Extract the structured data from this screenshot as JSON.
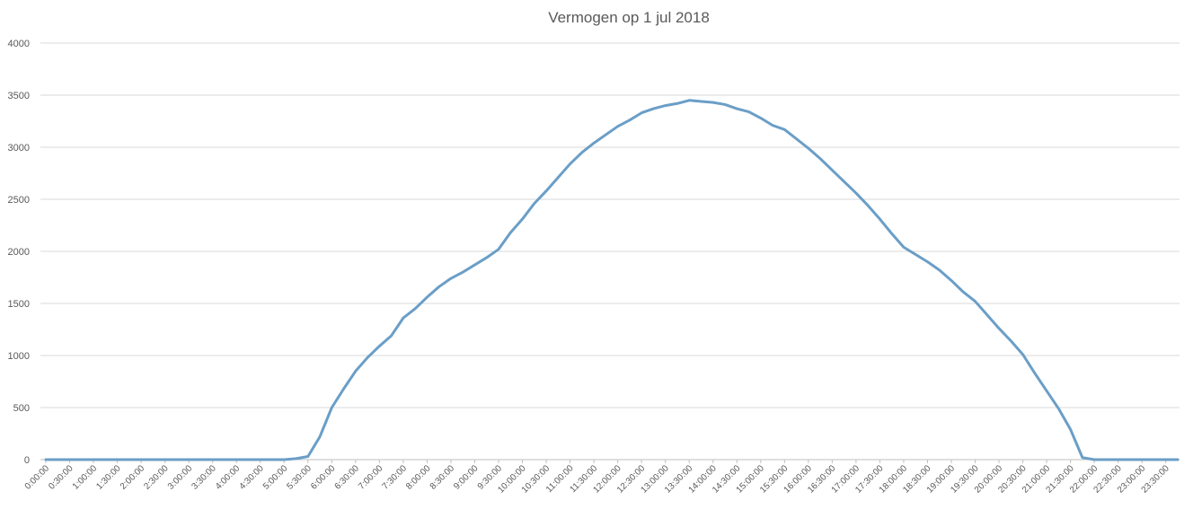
{
  "chart_data": {
    "type": "line",
    "title": "Vermogen op 1 jul 2018",
    "xlabel": "",
    "ylabel": "",
    "ylim": [
      0,
      4000
    ],
    "y_ticks": [
      0,
      500,
      1000,
      1500,
      2000,
      2500,
      3000,
      3500,
      4000
    ],
    "grid": true,
    "legend": "none",
    "series_color": "#6a9ec7",
    "x": [
      "0:00:00",
      "0:15:00",
      "0:30:00",
      "0:45:00",
      "1:00:00",
      "1:15:00",
      "1:30:00",
      "1:45:00",
      "2:00:00",
      "2:15:00",
      "2:30:00",
      "2:45:00",
      "3:00:00",
      "3:15:00",
      "3:30:00",
      "3:45:00",
      "4:00:00",
      "4:15:00",
      "4:30:00",
      "4:45:00",
      "5:00:00",
      "5:15:00",
      "5:30:00",
      "5:45:00",
      "6:00:00",
      "6:15:00",
      "6:30:00",
      "6:45:00",
      "7:00:00",
      "7:15:00",
      "7:30:00",
      "7:45:00",
      "8:00:00",
      "8:15:00",
      "8:30:00",
      "8:45:00",
      "9:00:00",
      "9:15:00",
      "9:30:00",
      "9:45:00",
      "10:00:00",
      "10:15:00",
      "10:30:00",
      "10:45:00",
      "11:00:00",
      "11:15:00",
      "11:30:00",
      "11:45:00",
      "12:00:00",
      "12:15:00",
      "12:30:00",
      "12:45:00",
      "13:00:00",
      "13:15:00",
      "13:30:00",
      "13:45:00",
      "14:00:00",
      "14:15:00",
      "14:30:00",
      "14:45:00",
      "15:00:00",
      "15:15:00",
      "15:30:00",
      "15:45:00",
      "16:00:00",
      "16:15:00",
      "16:30:00",
      "16:45:00",
      "17:00:00",
      "17:15:00",
      "17:30:00",
      "17:45:00",
      "18:00:00",
      "18:15:00",
      "18:30:00",
      "18:45:00",
      "19:00:00",
      "19:15:00",
      "19:30:00",
      "19:45:00",
      "20:00:00",
      "20:15:00",
      "20:30:00",
      "20:45:00",
      "21:00:00",
      "21:15:00",
      "21:30:00",
      "21:45:00",
      "22:00:00",
      "22:15:00",
      "22:30:00",
      "22:45:00",
      "23:00:00",
      "23:15:00",
      "23:30:00",
      "23:45:00"
    ],
    "x_tick_labels": [
      "0:00:00",
      "0:30:00",
      "1:00:00",
      "1:30:00",
      "2:00:00",
      "2:30:00",
      "3:00:00",
      "3:30:00",
      "4:00:00",
      "4:30:00",
      "5:00:00",
      "5:30:00",
      "6:00:00",
      "6:30:00",
      "7:00:00",
      "7:30:00",
      "8:00:00",
      "8:30:00",
      "9:00:00",
      "9:30:00",
      "10:00:00",
      "10:30:00",
      "11:00:00",
      "11:30:00",
      "12:00:00",
      "12:30:00",
      "13:00:00",
      "13:30:00",
      "14:00:00",
      "14:30:00",
      "15:00:00",
      "15:30:00",
      "16:00:00",
      "16:30:00",
      "17:00:00",
      "17:30:00",
      "18:00:00",
      "18:30:00",
      "19:00:00",
      "19:30:00",
      "20:00:00",
      "20:30:00",
      "21:00:00",
      "21:30:00",
      "22:00:00",
      "22:30:00",
      "23:00:00",
      "23:30:00"
    ],
    "values": [
      0,
      0,
      0,
      0,
      0,
      0,
      0,
      0,
      0,
      0,
      0,
      0,
      0,
      0,
      0,
      0,
      0,
      0,
      0,
      0,
      0,
      10,
      30,
      220,
      500,
      680,
      850,
      980,
      1090,
      1190,
      1360,
      1450,
      1560,
      1660,
      1740,
      1800,
      1870,
      1940,
      2020,
      2180,
      2310,
      2460,
      2580,
      2710,
      2840,
      2950,
      3040,
      3120,
      3200,
      3260,
      3330,
      3370,
      3400,
      3420,
      3450,
      3440,
      3430,
      3410,
      3370,
      3340,
      3280,
      3210,
      3170,
      3080,
      2990,
      2890,
      2780,
      2670,
      2560,
      2440,
      2310,
      2170,
      2040,
      1970,
      1900,
      1820,
      1720,
      1610,
      1520,
      1390,
      1260,
      1140,
      1010,
      830,
      660,
      490,
      290,
      20,
      0,
      0,
      0,
      0,
      0,
      0,
      0,
      0
    ]
  }
}
